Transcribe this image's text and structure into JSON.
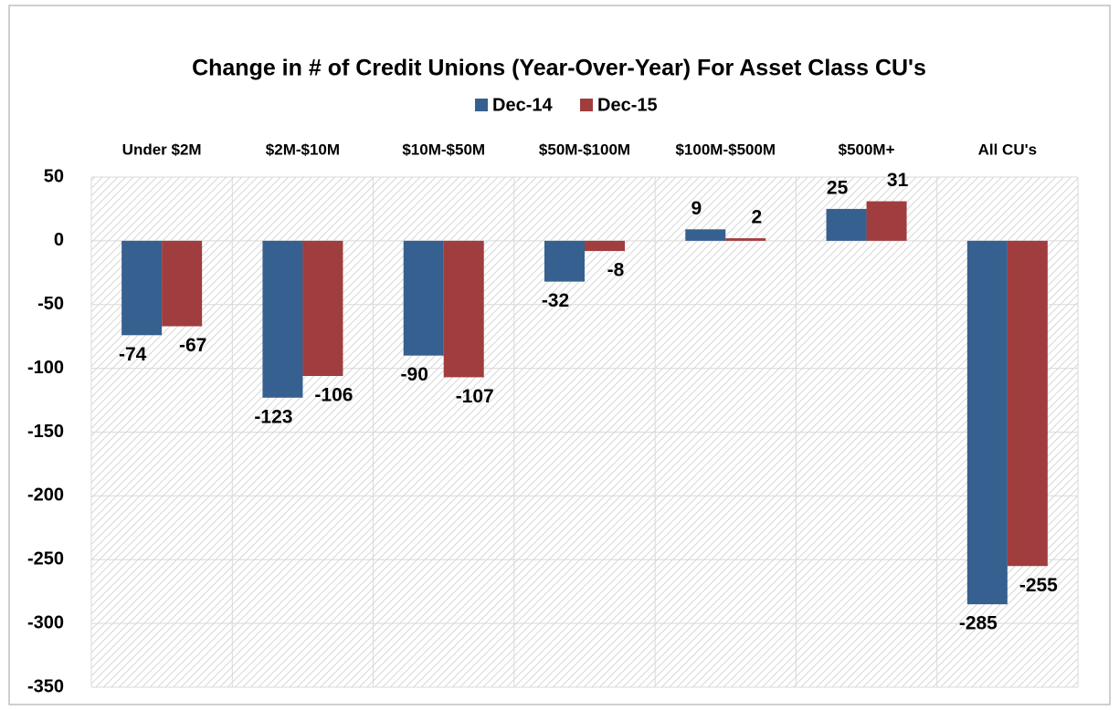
{
  "chart_data": {
    "type": "bar",
    "title": "Change in # of Credit Unions (Year-Over-Year) For Asset Class CU's",
    "categories": [
      "Under $2M",
      "$2M-$10M",
      "$10M-$50M",
      "$50M-$100M",
      "$100M-$500M",
      "$500M+",
      "All CU's"
    ],
    "series": [
      {
        "name": "Dec-14",
        "color": "#35608f",
        "values": [
          -74,
          -123,
          -90,
          -32,
          9,
          25,
          -285
        ]
      },
      {
        "name": "Dec-15",
        "color": "#a03d3e",
        "values": [
          -67,
          -106,
          -107,
          -8,
          2,
          31,
          -255
        ]
      }
    ],
    "ylim": [
      -350,
      50
    ],
    "yticks": [
      50,
      0,
      -50,
      -100,
      -150,
      -200,
      -250,
      -300,
      -350
    ],
    "grid": true,
    "legend": "top"
  }
}
